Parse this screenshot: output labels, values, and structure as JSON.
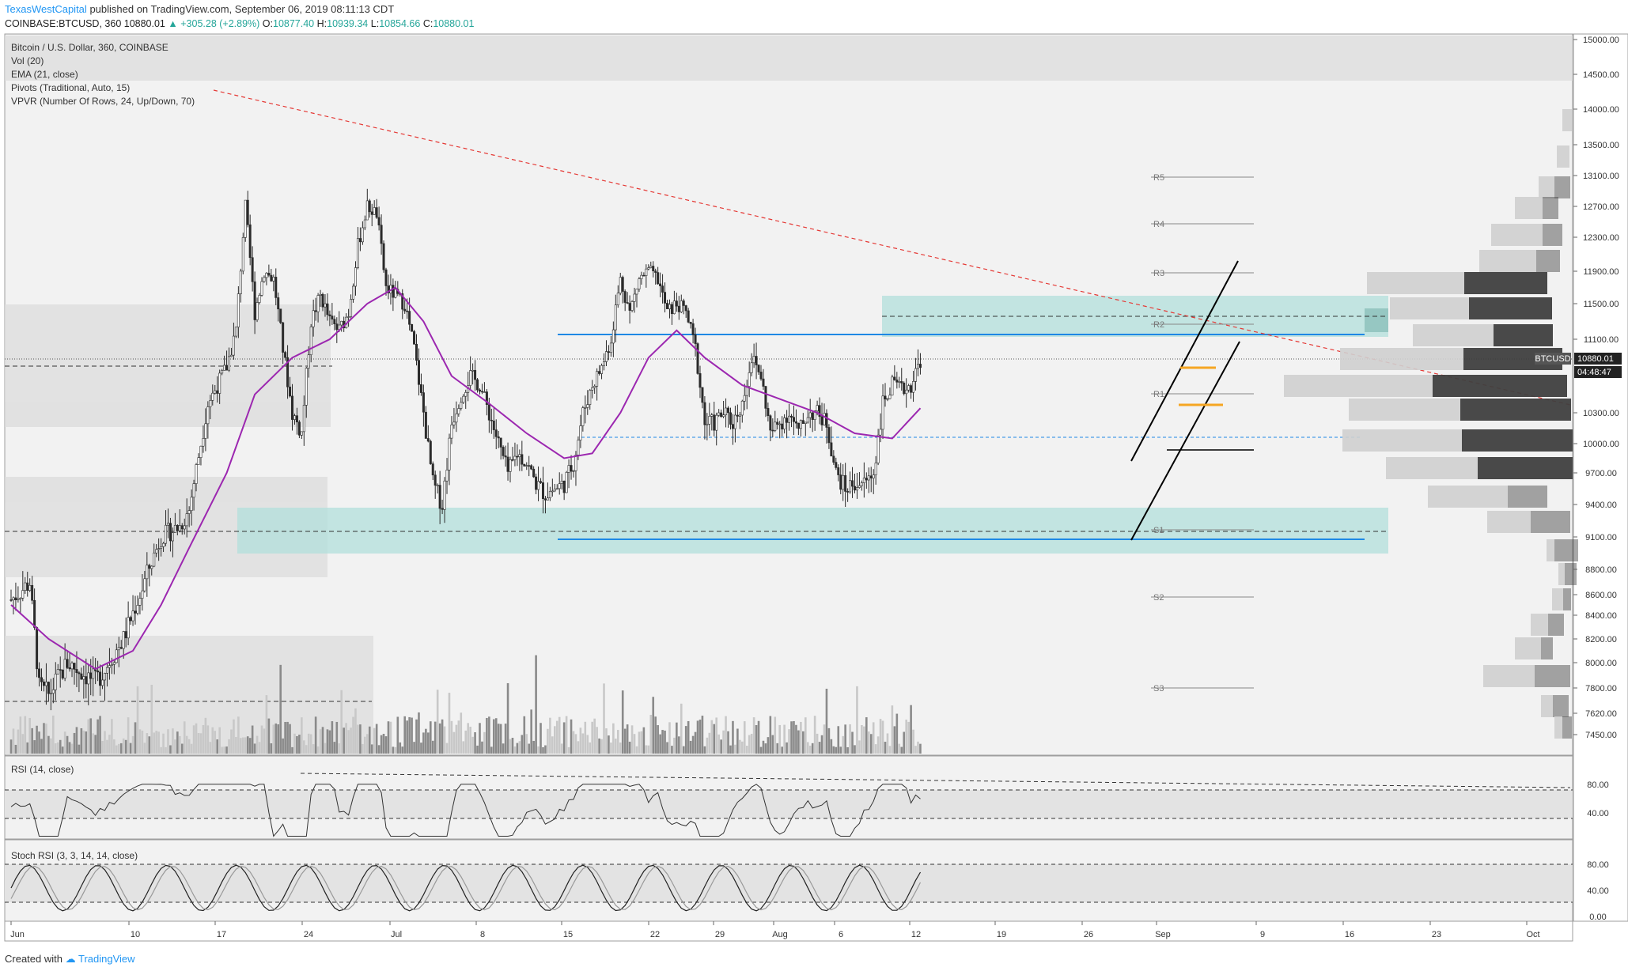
{
  "header": {
    "publisher": "TexasWestCapital",
    "published_text": "published on TradingView.com, September 06, 2019 08:11:13 CDT",
    "symbol": "COINBASE:BTCUSD, 360",
    "last": "10880.01",
    "change": "+305.28 (+2.89%)",
    "o_label": "O:",
    "o": "10877.40",
    "h_label": "H:",
    "h": "10939.34",
    "l_label": "L:",
    "l": "10854.66",
    "c_label": "C:",
    "c": "10880.01"
  },
  "legend": [
    "Bitcoin / U.S. Dollar, 360, COINBASE",
    "Vol (20)",
    "EMA (21, close)",
    "Pivots (Traditional, Auto, 15)",
    "VPVR (Number Of Rows, 24, Up/Down, 70)"
  ],
  "price_badge": {
    "symbol": "BTCUSD",
    "price": "10880.01",
    "countdown": "04:48:47"
  },
  "rsi_label": "RSI (14, close)",
  "stoch_label": "Stoch RSI (3, 3, 14, 14, close)",
  "footer": {
    "created_with": "Created with",
    "brand": "TradingView"
  },
  "colors": {
    "candle": "#2b2b2b",
    "ema": "#9c27b0",
    "trend_line": "#e53935",
    "support_resistance": "#1e88e5",
    "zone_fill": "#b2dfdb",
    "vol_bar": "#9e9e9e",
    "vpvr_up": "#cfcfcf",
    "vpvr_down": "#3f3f3f"
  },
  "chart_data": {
    "type": "line",
    "x_ticks": [
      "Jun",
      "10",
      "17",
      "24",
      "Jul",
      "8",
      "15",
      "22",
      "29",
      "Aug",
      "6",
      "12",
      "19",
      "26",
      "Sep",
      "9",
      "16",
      "23",
      "Oct"
    ],
    "y_ticks": [
      "15000.00",
      "14500.00",
      "14000.00",
      "13500.00",
      "13100.00",
      "12700.00",
      "12300.00",
      "11900.00",
      "11500.00",
      "11100.00",
      "10300.00",
      "10000.00",
      "9700.00",
      "9400.00",
      "9100.00",
      "8800.00",
      "8600.00",
      "8400.00",
      "8200.00",
      "8000.00",
      "7800.00",
      "7620.00",
      "7450.00"
    ],
    "price_series": [
      [
        "Jun 1",
        8550
      ],
      [
        "Jun 3",
        8700
      ],
      [
        "Jun 4",
        7800
      ],
      [
        "Jun 5",
        7750
      ],
      [
        "Jun 7",
        8000
      ],
      [
        "Jun 8",
        7950
      ],
      [
        "Jun 10",
        7850
      ],
      [
        "Jun 11",
        7950
      ],
      [
        "Jun 13",
        8200
      ],
      [
        "Jun 15",
        8650
      ],
      [
        "Jun 17",
        9100
      ],
      [
        "Jun 19",
        9200
      ],
      [
        "Jun 20",
        9350
      ],
      [
        "Jun 22",
        10400
      ],
      [
        "Jun 24",
        10800
      ],
      [
        "Jun 25",
        11200
      ],
      [
        "Jun 26",
        12700
      ],
      [
        "Jun 27",
        11400
      ],
      [
        "Jun 28",
        11900
      ],
      [
        "Jun 29",
        11800
      ],
      [
        "Jun 30",
        11000
      ],
      [
        "Jul 1",
        10300
      ],
      [
        "Jul 2",
        10100
      ],
      [
        "Jul 3",
        11300
      ],
      [
        "Jul 4",
        11600
      ],
      [
        "Jul 5",
        11300
      ],
      [
        "Jul 6",
        11200
      ],
      [
        "Jul 7",
        11400
      ],
      [
        "Jul 8",
        12200
      ],
      [
        "Jul 9",
        12700
      ],
      [
        "Jul 10",
        12600
      ],
      [
        "Jul 11",
        11700
      ],
      [
        "Jul 12",
        11600
      ],
      [
        "Jul 13",
        11500
      ],
      [
        "Jul 14",
        11000
      ],
      [
        "Jul 15",
        10300
      ],
      [
        "Jul 16",
        9600
      ],
      [
        "Jul 17",
        9400
      ],
      [
        "Jul 18",
        10200
      ],
      [
        "Jul 19",
        10500
      ],
      [
        "Jul 20",
        10700
      ],
      [
        "Jul 21",
        10600
      ],
      [
        "Jul 22",
        10300
      ],
      [
        "Jul 23",
        10000
      ],
      [
        "Jul 24",
        9700
      ],
      [
        "Jul 25",
        9900
      ],
      [
        "Jul 26",
        9800
      ],
      [
        "Jul 27",
        9600
      ],
      [
        "Jul 28",
        9500
      ],
      [
        "Jul 29",
        9550
      ],
      [
        "Jul 30",
        9600
      ],
      [
        "Jul 31",
        9800
      ],
      [
        "Aug 1",
        10300
      ],
      [
        "Aug 2",
        10600
      ],
      [
        "Aug 3",
        10800
      ],
      [
        "Aug 4",
        11100
      ],
      [
        "Aug 5",
        11800
      ],
      [
        "Aug 6",
        11400
      ],
      [
        "Aug 7",
        11800
      ],
      [
        "Aug 8",
        11900
      ],
      [
        "Aug 9",
        11800
      ],
      [
        "Aug 10",
        11400
      ],
      [
        "Aug 11",
        11500
      ],
      [
        "Aug 12",
        11400
      ],
      [
        "Aug 13",
        11000
      ],
      [
        "Aug 14",
        10200
      ],
      [
        "Aug 15",
        10200
      ],
      [
        "Aug 16",
        10300
      ],
      [
        "Aug 17",
        10200
      ],
      [
        "Aug 18",
        10400
      ],
      [
        "Aug 19",
        10900
      ],
      [
        "Aug 20",
        10700
      ],
      [
        "Aug 21",
        10100
      ],
      [
        "Aug 22",
        10200
      ],
      [
        "Aug 23",
        10300
      ],
      [
        "Aug 24",
        10100
      ],
      [
        "Aug 25",
        10300
      ],
      [
        "Aug 26",
        10300
      ],
      [
        "Aug 27",
        10200
      ],
      [
        "Aug 28",
        9700
      ],
      [
        "Aug 29",
        9550
      ],
      [
        "Aug 30",
        9600
      ],
      [
        "Aug 31",
        9600
      ],
      [
        "Sep 1",
        9700
      ],
      [
        "Sep 2",
        10400
      ],
      [
        "Sep 3",
        10600
      ],
      [
        "Sep 4",
        10550
      ],
      [
        "Sep 5",
        10600
      ],
      [
        "Sep 6",
        10880
      ]
    ],
    "ema21": [
      [
        "Jun 1",
        8500
      ],
      [
        "Jun 5",
        8200
      ],
      [
        "Jun 10",
        7950
      ],
      [
        "Jun 14",
        8100
      ],
      [
        "Jun 17",
        8500
      ],
      [
        "Jun 20",
        9000
      ],
      [
        "Jun 24",
        9700
      ],
      [
        "Jun 27",
        10500
      ],
      [
        "Jul 1",
        10900
      ],
      [
        "Jul 5",
        11100
      ],
      [
        "Jul 9",
        11500
      ],
      [
        "Jul 12",
        11700
      ],
      [
        "Jul 15",
        11300
      ],
      [
        "Jul 18",
        10700
      ],
      [
        "Jul 22",
        10400
      ],
      [
        "Jul 26",
        10100
      ],
      [
        "Jul 30",
        9850
      ],
      [
        "Aug 2",
        9900
      ],
      [
        "Aug 5",
        10300
      ],
      [
        "Aug 8",
        10900
      ],
      [
        "Aug 11",
        11200
      ],
      [
        "Aug 14",
        10900
      ],
      [
        "Aug 18",
        10600
      ],
      [
        "Aug 22",
        10450
      ],
      [
        "Aug 26",
        10300
      ],
      [
        "Aug 30",
        10100
      ],
      [
        "Sep 3",
        10050
      ],
      [
        "Sep 6",
        10350
      ]
    ],
    "annotations": {
      "pivots": [
        "R5",
        "R4",
        "R3",
        "R2",
        "R1",
        "S1",
        "S2",
        "S3"
      ],
      "support_level": 9100,
      "resistance_level": 11150,
      "rsi_ticks": [
        "80.00",
        "40.00"
      ],
      "stoch_ticks": [
        "80.00",
        "40.00",
        "0.00"
      ]
    }
  }
}
